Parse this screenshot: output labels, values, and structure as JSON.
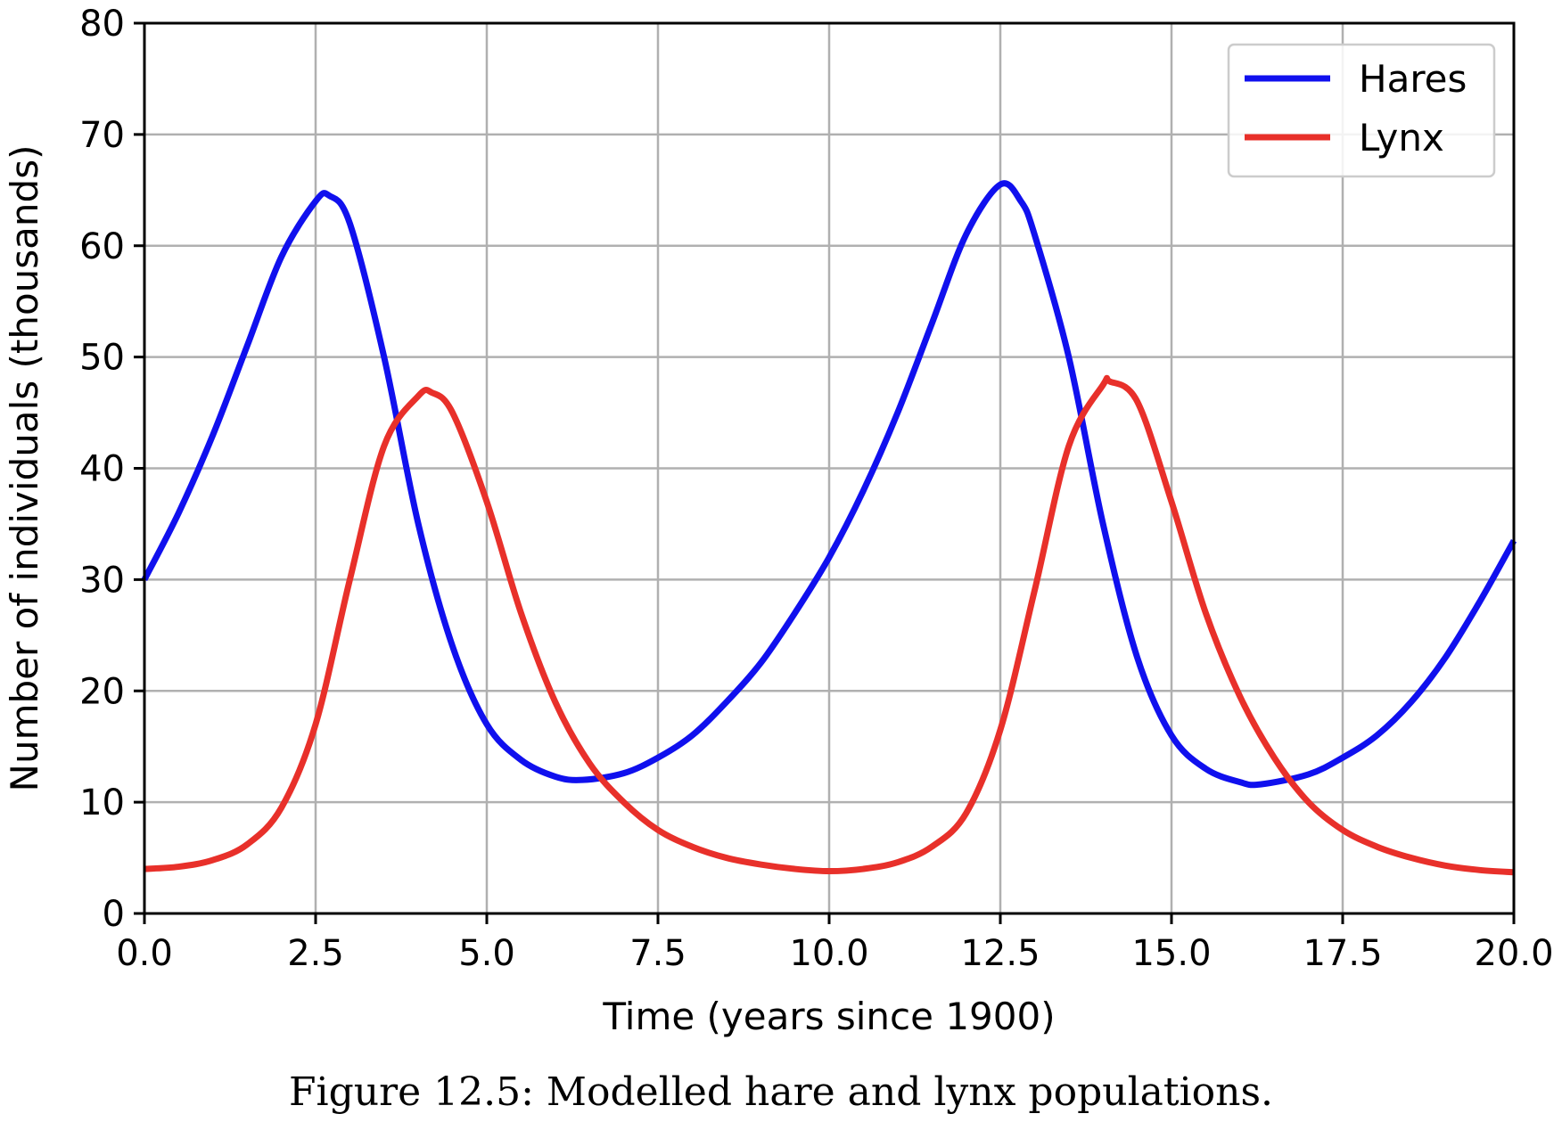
{
  "chart_data": {
    "type": "line",
    "caption": "Figure 12.5: Modelled hare and lynx populations.",
    "xlabel": "Time (years since 1900)",
    "ylabel": "Number of individuals (thousands)",
    "xlim": [
      0,
      20
    ],
    "ylim": [
      0,
      80
    ],
    "xticks": [
      0,
      2.5,
      5,
      7.5,
      10,
      12.5,
      15,
      17.5,
      20
    ],
    "xtick_labels": [
      "0.0",
      "2.5",
      "5.0",
      "7.5",
      "10.0",
      "12.5",
      "15.0",
      "17.5",
      "20.0"
    ],
    "yticks": [
      0,
      10,
      20,
      30,
      40,
      50,
      60,
      70,
      80
    ],
    "ytick_labels": [
      "0",
      "10",
      "20",
      "30",
      "40",
      "50",
      "60",
      "70",
      "80"
    ],
    "grid": true,
    "legend_position": "top-right",
    "series": [
      {
        "name": "Hares",
        "color": "#1010ee",
        "x": [
          0,
          0.5,
          1.0,
          1.5,
          2.0,
          2.5,
          2.7,
          3.0,
          3.5,
          4.0,
          4.5,
          5.0,
          5.5,
          6.0,
          6.4,
          7.0,
          7.5,
          8.0,
          8.5,
          9.0,
          9.5,
          10.0,
          10.5,
          11.0,
          11.5,
          12.0,
          12.5,
          12.8,
          13.0,
          13.5,
          14.0,
          14.5,
          15.0,
          15.5,
          16.0,
          16.3,
          17.0,
          17.5,
          18.0,
          18.5,
          19.0,
          19.5,
          20.0
        ],
        "y": [
          30,
          36,
          43,
          51,
          59,
          64,
          64.5,
          62,
          50,
          35,
          24,
          17,
          13.8,
          12.3,
          12,
          12.6,
          14,
          16,
          19,
          22.5,
          27,
          32,
          38,
          45,
          53,
          61,
          65.5,
          64,
          61,
          50,
          35,
          23,
          16,
          13,
          11.8,
          11.6,
          12.5,
          14,
          16,
          19,
          23,
          28,
          33.5
        ]
      },
      {
        "name": "Lynx",
        "color": "#e8302a",
        "x": [
          0,
          0.5,
          1.0,
          1.5,
          2.0,
          2.5,
          3.0,
          3.5,
          4.0,
          4.2,
          4.5,
          5.0,
          5.5,
          6.0,
          6.5,
          7.0,
          7.5,
          8.0,
          8.5,
          9.0,
          9.5,
          10.0,
          10.5,
          11.0,
          11.5,
          12.0,
          12.5,
          13.0,
          13.5,
          14.0,
          14.1,
          14.5,
          15.0,
          15.5,
          16.0,
          16.5,
          17.0,
          17.5,
          18.0,
          18.5,
          19.0,
          19.5,
          20.0
        ],
        "y": [
          4,
          4.2,
          4.8,
          6.2,
          9.5,
          17,
          30,
          42,
          46.5,
          46.8,
          45,
          37,
          27,
          19,
          13.5,
          10,
          7.5,
          6,
          5,
          4.4,
          4,
          3.8,
          4,
          4.6,
          6,
          9,
          16.5,
          29,
          42,
          47.5,
          47.8,
          46,
          37,
          27,
          19.5,
          14,
          10,
          7.5,
          6,
          5,
          4.3,
          3.9,
          3.7
        ]
      }
    ]
  }
}
